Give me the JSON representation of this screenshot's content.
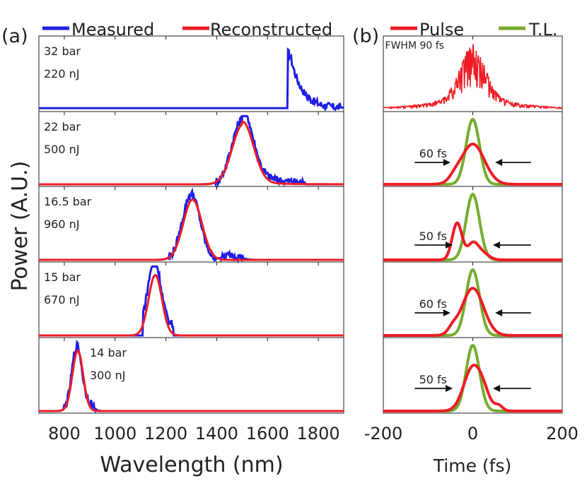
{
  "figure": {
    "panel_a_label": "(a)",
    "panel_b_label": "(b)",
    "colors": {
      "measured": "#1f1fe6",
      "reconstructed": "#ee1c25",
      "pulse": "#ee1c25",
      "tl": "#77ac30",
      "axis": "#555555"
    }
  },
  "chart_data": [
    {
      "type": "line",
      "panel": "a",
      "xlabel": "Wavelength (nm)",
      "ylabel": "Power (A.U.)",
      "xlim": [
        700,
        1900
      ],
      "xticks": [
        800,
        1000,
        1200,
        1400,
        1600,
        1800
      ],
      "legend": [
        {
          "name": "Measured",
          "color": "#1f1fe6"
        },
        {
          "name": "Reconstructed",
          "color": "#ee1c25"
        }
      ],
      "legend_position": "top",
      "subplots": [
        {
          "pressure": "32 bar",
          "energy": "220 nJ",
          "measured_center": 1690,
          "measured_width": 25,
          "reconstructed": false
        },
        {
          "pressure": "22 bar",
          "energy": "500 nJ",
          "measured_center": 1500,
          "measured_width": 40,
          "reconstructed": true
        },
        {
          "pressure": "16.5 bar",
          "energy": "960 nJ",
          "measured_center": 1300,
          "measured_width": 35,
          "reconstructed": true
        },
        {
          "pressure": "15 bar",
          "energy": "670 nJ",
          "measured_center": 1155,
          "measured_width": 25,
          "reconstructed": true
        },
        {
          "pressure": "14 bar",
          "energy": "300 nJ",
          "measured_center": 850,
          "measured_width": 20,
          "reconstructed": true
        }
      ]
    },
    {
      "type": "line",
      "panel": "b",
      "xlabel": "Time (fs)",
      "xlim": [
        -200,
        200
      ],
      "xticks": [
        -200,
        0,
        200
      ],
      "legend": [
        {
          "name": "Pulse",
          "color": "#ee1c25"
        },
        {
          "name": "T.L.",
          "color": "#77ac30"
        }
      ],
      "legend_position": "top",
      "subplots": [
        {
          "annotation": "FWHM 90 fs",
          "fwhm_fs": 90,
          "tl_shown": false
        },
        {
          "annotation": "60 fs",
          "fwhm_fs": 60,
          "tl_shown": true
        },
        {
          "annotation": "50 fs",
          "fwhm_fs": 50,
          "tl_shown": true
        },
        {
          "annotation": "60 fs",
          "fwhm_fs": 60,
          "tl_shown": true
        },
        {
          "annotation": "50 fs",
          "fwhm_fs": 50,
          "tl_shown": true
        }
      ]
    }
  ]
}
